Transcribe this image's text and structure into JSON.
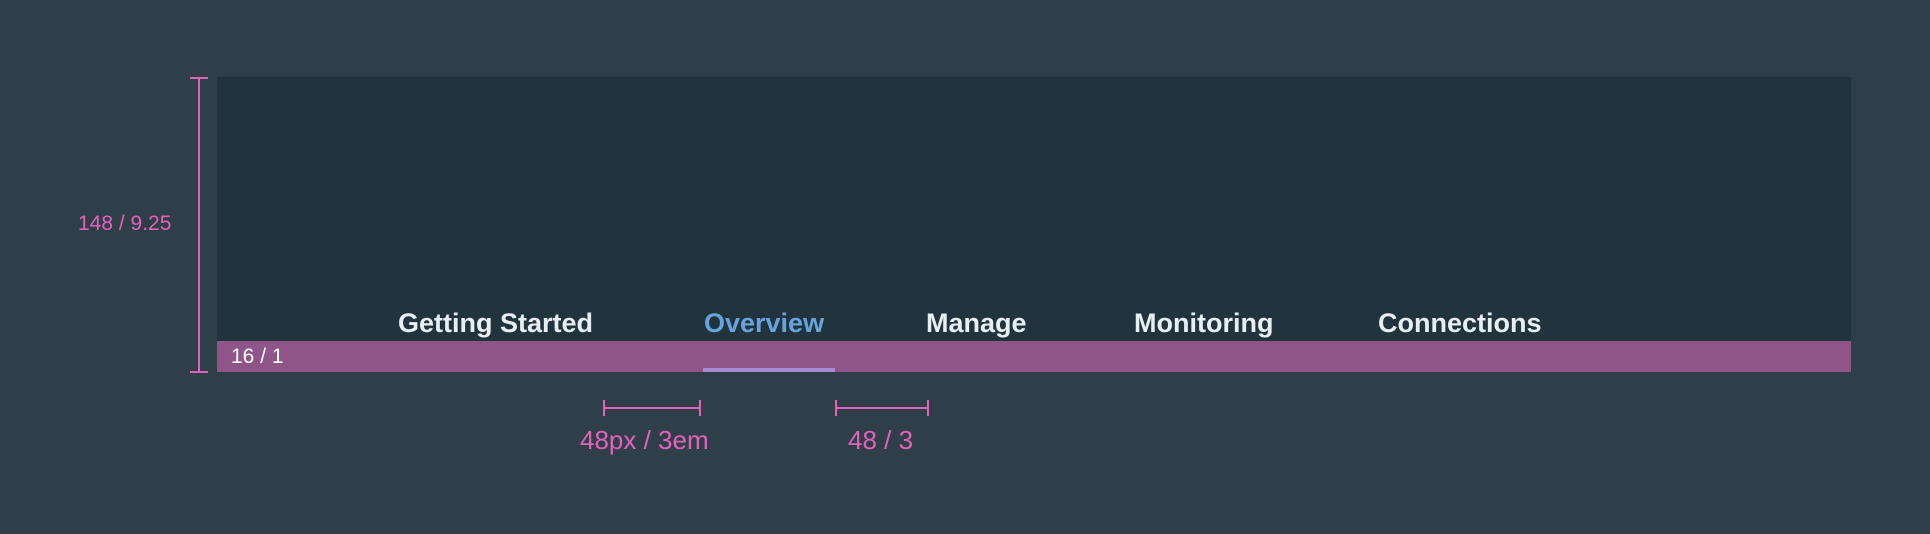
{
  "tabs": [
    {
      "label": "Getting Started",
      "active": false
    },
    {
      "label": "Overview",
      "active": true
    },
    {
      "label": "Manage",
      "active": false
    },
    {
      "label": "Monitoring",
      "active": false
    },
    {
      "label": "Connections",
      "active": false
    }
  ],
  "annotations": {
    "height_label": "148 / 9.25",
    "baseline_label": "16 / 1",
    "gap_label_1": "48px / 3em",
    "gap_label_2": "48 / 3"
  },
  "colors": {
    "background": "#2e3f4a",
    "frame": "#21343e",
    "baseline_band": "#8f5488",
    "tab_text": "#e8eef1",
    "active_tab_text": "#67a3dc",
    "active_indicator": "#a68ad6",
    "measure": "#e461ba"
  }
}
